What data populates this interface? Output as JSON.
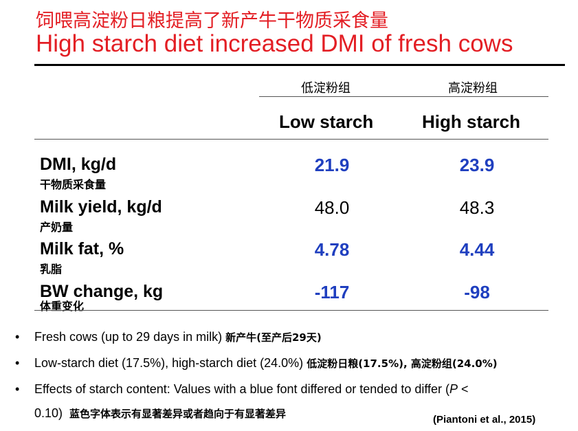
{
  "title": {
    "chinese": "饲喂高淀粉日粮提高了新产牛干物质采食量",
    "english": "High starch diet increased DMI of fresh cows"
  },
  "table": {
    "columns": [
      {
        "label_cn": "低淀粉组",
        "label_en": "Low starch"
      },
      {
        "label_cn": "高淀粉组",
        "label_en": "High starch"
      }
    ],
    "rows": [
      {
        "label": "DMI, kg/d",
        "sub": "干物质采食量",
        "low": "21.9",
        "high": "23.9",
        "significant": true
      },
      {
        "label": "Milk yield, kg/d",
        "sub": "产奶量",
        "low": "48.0",
        "high": "48.3",
        "significant": false
      },
      {
        "label": "Milk fat, %",
        "sub": "乳脂",
        "low": "4.78",
        "high": "4.44",
        "significant": true
      },
      {
        "label": "BW change, kg",
        "sub": "体重变化",
        "low": "-117",
        "high": "-98",
        "significant": true
      }
    ]
  },
  "notes": {
    "bullet_glyph": "•",
    "items": [
      {
        "en": "Fresh cows (up to 29 days in milk)",
        "cn": "新产牛(至产后29天)"
      },
      {
        "en": "Low-starch diet (17.5%), high-starch diet (24.0%)",
        "cn": "低淀粉日粮(17.5%), 高淀粉组(24.0%)"
      },
      {
        "en_line1_a": "Effects of starch content: Values with a blue font differed or tended to differ (",
        "en_line1_p": "P",
        "en_line1_b": " <",
        "en_line2": "0.10)",
        "cn": "蓝色字体表示有显著差异或者趋向于有显著差异"
      }
    ]
  },
  "citation": "(Piantoni et al., 2015)",
  "colors": {
    "title": "#e31e24",
    "significant_value": "#1f3fbf"
  }
}
